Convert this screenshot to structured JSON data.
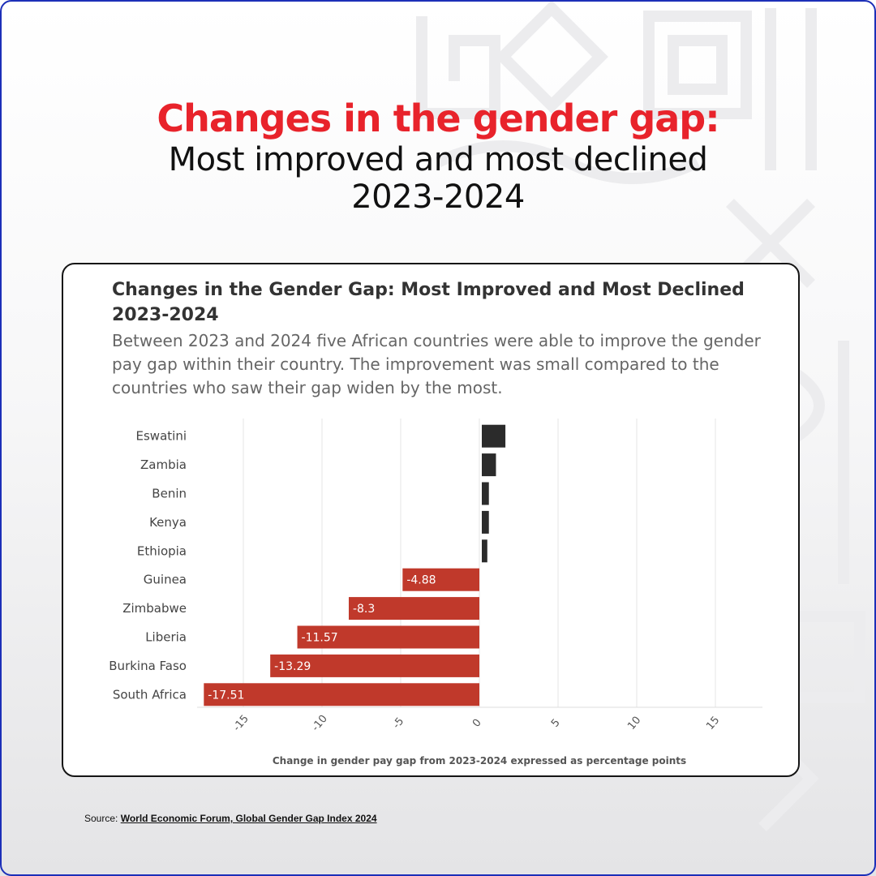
{
  "headline": {
    "line1": "Changes in the gender gap:",
    "line2": "Most improved and most declined",
    "line3": "2023-2024"
  },
  "card": {
    "title": "Changes in the Gender Gap: Most Improved and Most Declined 2023-2024",
    "subtitle": "Between 2023 and 2024 five African countries were able to improve the gender pay gap within their country. The improvement was small compared to the countries who saw their gap widen by the most."
  },
  "source": {
    "label": "Source:",
    "link_text": "World Economic Forum, Global Gender Gap Index 2024"
  },
  "colors": {
    "positive_bar": "#2b2b2b",
    "negative_bar": "#c0392b",
    "headline_accent": "#e8232b"
  },
  "chart_data": {
    "type": "bar",
    "orientation": "horizontal",
    "categories": [
      "Eswatini",
      "Zambia",
      "Benin",
      "Kenya",
      "Ethiopia",
      "Guinea",
      "Zimbabwe",
      "Liberia",
      "Burkina Faso",
      "South Africa"
    ],
    "values": [
      1.5,
      0.9,
      0.45,
      0.45,
      0.35,
      -4.88,
      -8.3,
      -11.57,
      -13.29,
      -17.51
    ],
    "data_labels": [
      "",
      "",
      "",
      "",
      "",
      "-4.88",
      "-8.3",
      "-11.57",
      "-13.29",
      "-17.51"
    ],
    "xlabel": "Change in gender pay gap from 2023-2024 expressed as percentage points",
    "xlim": [
      -18,
      18
    ],
    "xticks": [
      -15,
      -10,
      -5,
      0,
      5,
      10,
      15
    ],
    "grid": true
  }
}
